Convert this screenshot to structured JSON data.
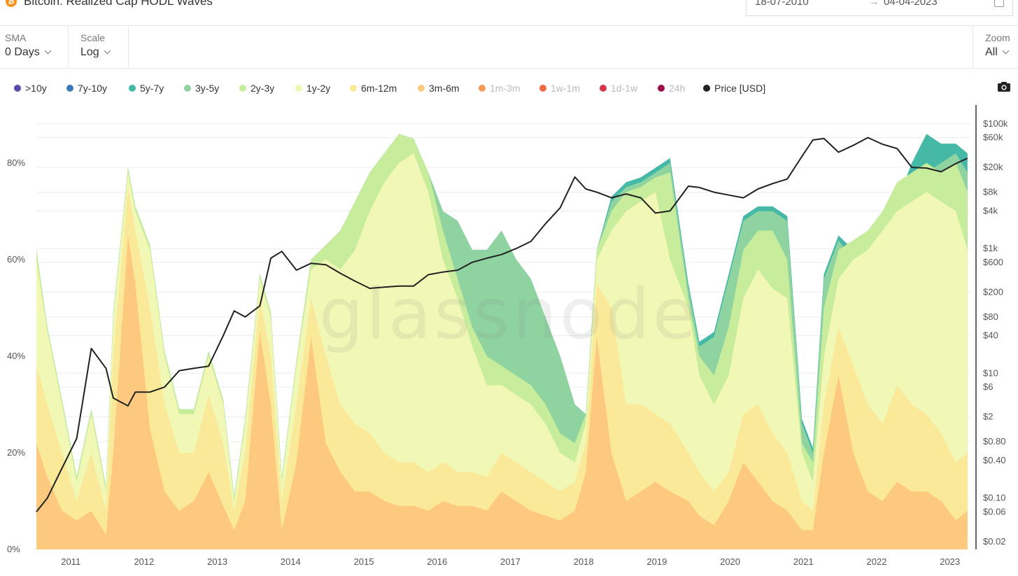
{
  "header": {
    "title": "Bitcoin: Realized Cap HODL Waves",
    "date_start": "18-07-2010",
    "date_sep": "→",
    "date_end": "04-04-2023"
  },
  "controls": {
    "sma": {
      "label": "SMA",
      "value": "0 Days"
    },
    "scale": {
      "label": "Scale",
      "value": "Log"
    },
    "zoom": {
      "label": "Zoom",
      "value": "All"
    }
  },
  "legend": [
    {
      "label": ">10y",
      "color": "#5b4aa3",
      "active": true
    },
    {
      "label": "7y-10y",
      "color": "#3a7ab8",
      "active": true
    },
    {
      "label": "5y-7y",
      "color": "#45b8a6",
      "active": true
    },
    {
      "label": "3y-5y",
      "color": "#8ed3a0",
      "active": true
    },
    {
      "label": "2y-3y",
      "color": "#c7ec9c",
      "active": true
    },
    {
      "label": "1y-2y",
      "color": "#f1f7b4",
      "active": true
    },
    {
      "label": "6m-12m",
      "color": "#fbe99a",
      "active": true
    },
    {
      "label": "3m-6m",
      "color": "#fcc97e",
      "active": true
    },
    {
      "label": "1m-3m",
      "color": "#f99b59",
      "active": false
    },
    {
      "label": "1w-1m",
      "color": "#f06a45",
      "active": false
    },
    {
      "label": "1d-1w",
      "color": "#d8364d",
      "active": false
    },
    {
      "label": "24h",
      "color": "#9a0e4a",
      "active": false
    },
    {
      "label": "Price [USD]",
      "color": "#222222",
      "active": true
    }
  ],
  "watermark": "glassnode",
  "chart_data": {
    "type": "area",
    "title": "Bitcoin: Realized Cap HODL Waves",
    "stacked": true,
    "x": [
      2010.55,
      2010.7,
      2010.9,
      2011.1,
      2011.3,
      2011.5,
      2011.6,
      2011.8,
      2011.9,
      2012.1,
      2012.3,
      2012.5,
      2012.7,
      2012.9,
      2013.1,
      2013.25,
      2013.4,
      2013.6,
      2013.75,
      2013.9,
      2014.1,
      2014.3,
      2014.5,
      2014.7,
      2014.9,
      2015.1,
      2015.3,
      2015.5,
      2015.7,
      2015.9,
      2016.1,
      2016.3,
      2016.5,
      2016.7,
      2016.9,
      2017.1,
      2017.3,
      2017.5,
      2017.7,
      2017.9,
      2018.05,
      2018.2,
      2018.4,
      2018.6,
      2018.8,
      2019.0,
      2019.2,
      2019.45,
      2019.6,
      2019.8,
      2020.0,
      2020.2,
      2020.4,
      2020.6,
      2020.8,
      2021.0,
      2021.15,
      2021.3,
      2021.5,
      2021.7,
      2021.9,
      2022.1,
      2022.3,
      2022.5,
      2022.7,
      2022.9,
      2023.1,
      2023.26
    ],
    "x_ticks": [
      "2011",
      "2012",
      "2013",
      "2014",
      "2015",
      "2016",
      "2017",
      "2018",
      "2019",
      "2020",
      "2021",
      "2022",
      "2023"
    ],
    "series": [
      {
        "name": "3m-6m",
        "values": [
          22,
          15,
          8,
          6,
          8,
          3,
          20,
          65,
          55,
          25,
          12,
          8,
          10,
          16,
          9,
          4,
          10,
          45,
          30,
          4,
          18,
          44,
          22,
          16,
          12,
          12,
          10,
          9,
          9,
          8,
          10,
          9,
          9,
          8,
          12,
          10,
          8,
          7,
          6,
          8,
          16,
          44,
          20,
          10,
          12,
          14,
          12,
          10,
          7,
          5,
          10,
          18,
          14,
          10,
          8,
          4,
          4,
          20,
          36,
          20,
          12,
          10,
          14,
          12,
          12,
          10,
          6,
          8
        ]
      },
      {
        "name": "6m-12m",
        "values": [
          38,
          30,
          20,
          10,
          20,
          8,
          40,
          75,
          66,
          50,
          30,
          20,
          20,
          32,
          22,
          8,
          20,
          52,
          40,
          10,
          30,
          52,
          40,
          30,
          26,
          24,
          20,
          18,
          18,
          16,
          18,
          16,
          16,
          15,
          20,
          18,
          16,
          14,
          12,
          14,
          22,
          55,
          50,
          30,
          30,
          28,
          26,
          20,
          16,
          12,
          16,
          28,
          30,
          24,
          20,
          10,
          8,
          30,
          46,
          38,
          30,
          26,
          34,
          30,
          28,
          24,
          18,
          20
        ]
      },
      {
        "name": "1y-2y",
        "values": [
          60,
          45,
          30,
          14,
          28,
          12,
          48,
          78,
          70,
          62,
          40,
          28,
          28,
          40,
          30,
          10,
          26,
          56,
          48,
          14,
          38,
          58,
          60,
          58,
          62,
          70,
          76,
          80,
          82,
          74,
          60,
          52,
          42,
          34,
          34,
          32,
          30,
          26,
          20,
          18,
          26,
          60,
          66,
          70,
          72,
          74,
          60,
          50,
          36,
          30,
          36,
          52,
          58,
          54,
          52,
          20,
          14,
          40,
          56,
          60,
          62,
          66,
          70,
          72,
          74,
          72,
          70,
          62
        ]
      },
      {
        "name": "2y-3y",
        "values": [
          62,
          46,
          31,
          15,
          29,
          13,
          49,
          79,
          71,
          63,
          41,
          29,
          29,
          41,
          31,
          11,
          27,
          57,
          49,
          15,
          39,
          60,
          63,
          66,
          72,
          78,
          82,
          86,
          85,
          78,
          66,
          56,
          46,
          40,
          38,
          36,
          34,
          30,
          24,
          22,
          28,
          62,
          70,
          74,
          75,
          77,
          78,
          52,
          40,
          36,
          46,
          62,
          66,
          66,
          60,
          22,
          18,
          50,
          62,
          64,
          66,
          70,
          76,
          78,
          80,
          78,
          80,
          74
        ]
      },
      {
        "name": "3y-5y",
        "values": [
          62,
          46,
          31,
          15,
          29,
          13,
          49,
          79,
          71,
          63,
          41,
          29,
          29,
          41,
          31,
          11,
          27,
          57,
          49,
          15,
          39,
          60,
          63,
          66,
          72,
          78,
          82,
          86,
          85,
          78,
          70,
          68,
          62,
          62,
          66,
          60,
          56,
          48,
          40,
          30,
          28,
          62,
          72,
          75,
          76,
          78,
          80,
          54,
          42,
          44,
          56,
          68,
          70,
          70,
          68,
          26,
          20,
          56,
          64,
          60,
          62,
          60,
          66,
          72,
          78,
          80,
          82,
          78
        ]
      },
      {
        "name": "5y-7y",
        "values": [
          62,
          46,
          31,
          15,
          29,
          13,
          49,
          79,
          71,
          63,
          41,
          29,
          29,
          41,
          31,
          11,
          27,
          57,
          49,
          15,
          39,
          60,
          63,
          66,
          72,
          78,
          82,
          86,
          85,
          78,
          70,
          68,
          62,
          62,
          66,
          60,
          56,
          48,
          40,
          30,
          28,
          62,
          73,
          76,
          77,
          79,
          81,
          55,
          43,
          45,
          57,
          69,
          71,
          71,
          69,
          27,
          21,
          57,
          65,
          62,
          64,
          64,
          72,
          80,
          86,
          84,
          84,
          82
        ]
      }
    ],
    "price": {
      "name": "Price [USD]",
      "values": [
        0.06,
        0.1,
        0.3,
        0.9,
        25,
        12,
        4,
        3,
        5,
        5,
        6,
        11,
        12,
        13,
        40,
        100,
        80,
        120,
        700,
        900,
        450,
        580,
        550,
        400,
        300,
        230,
        240,
        250,
        250,
        380,
        420,
        450,
        600,
        700,
        800,
        1000,
        1300,
        2500,
        4500,
        14000,
        9000,
        8000,
        6500,
        7500,
        6500,
        3700,
        4000,
        10000,
        9500,
        8000,
        7200,
        6500,
        9000,
        11000,
        13000,
        30000,
        55000,
        58000,
        35000,
        45000,
        60000,
        47000,
        40000,
        20000,
        19500,
        17000,
        23000,
        28000
      ]
    },
    "y_ticks_left": [
      "0%",
      "20%",
      "40%",
      "60%",
      "80%"
    ],
    "ylim_left": [
      0,
      92
    ],
    "y_ticks_right": [
      "$100k",
      "$60k",
      "$20k",
      "$8k",
      "$4k",
      "$1k",
      "$600",
      "$200",
      "$80",
      "$40",
      "$10",
      "$6",
      "$2",
      "$0.80",
      "$0.40",
      "$0.10",
      "$0.06",
      "$0.02"
    ],
    "y_tick_values_right": [
      100000,
      60000,
      20000,
      8000,
      4000,
      1000,
      600,
      200,
      80,
      40,
      10,
      6,
      2,
      0.8,
      0.4,
      0.1,
      0.06,
      0.02
    ],
    "ylim_right": [
      0.015,
      200000
    ],
    "right_scale": "log",
    "xlim": [
      2010.55,
      2023.3
    ],
    "grid": true
  }
}
